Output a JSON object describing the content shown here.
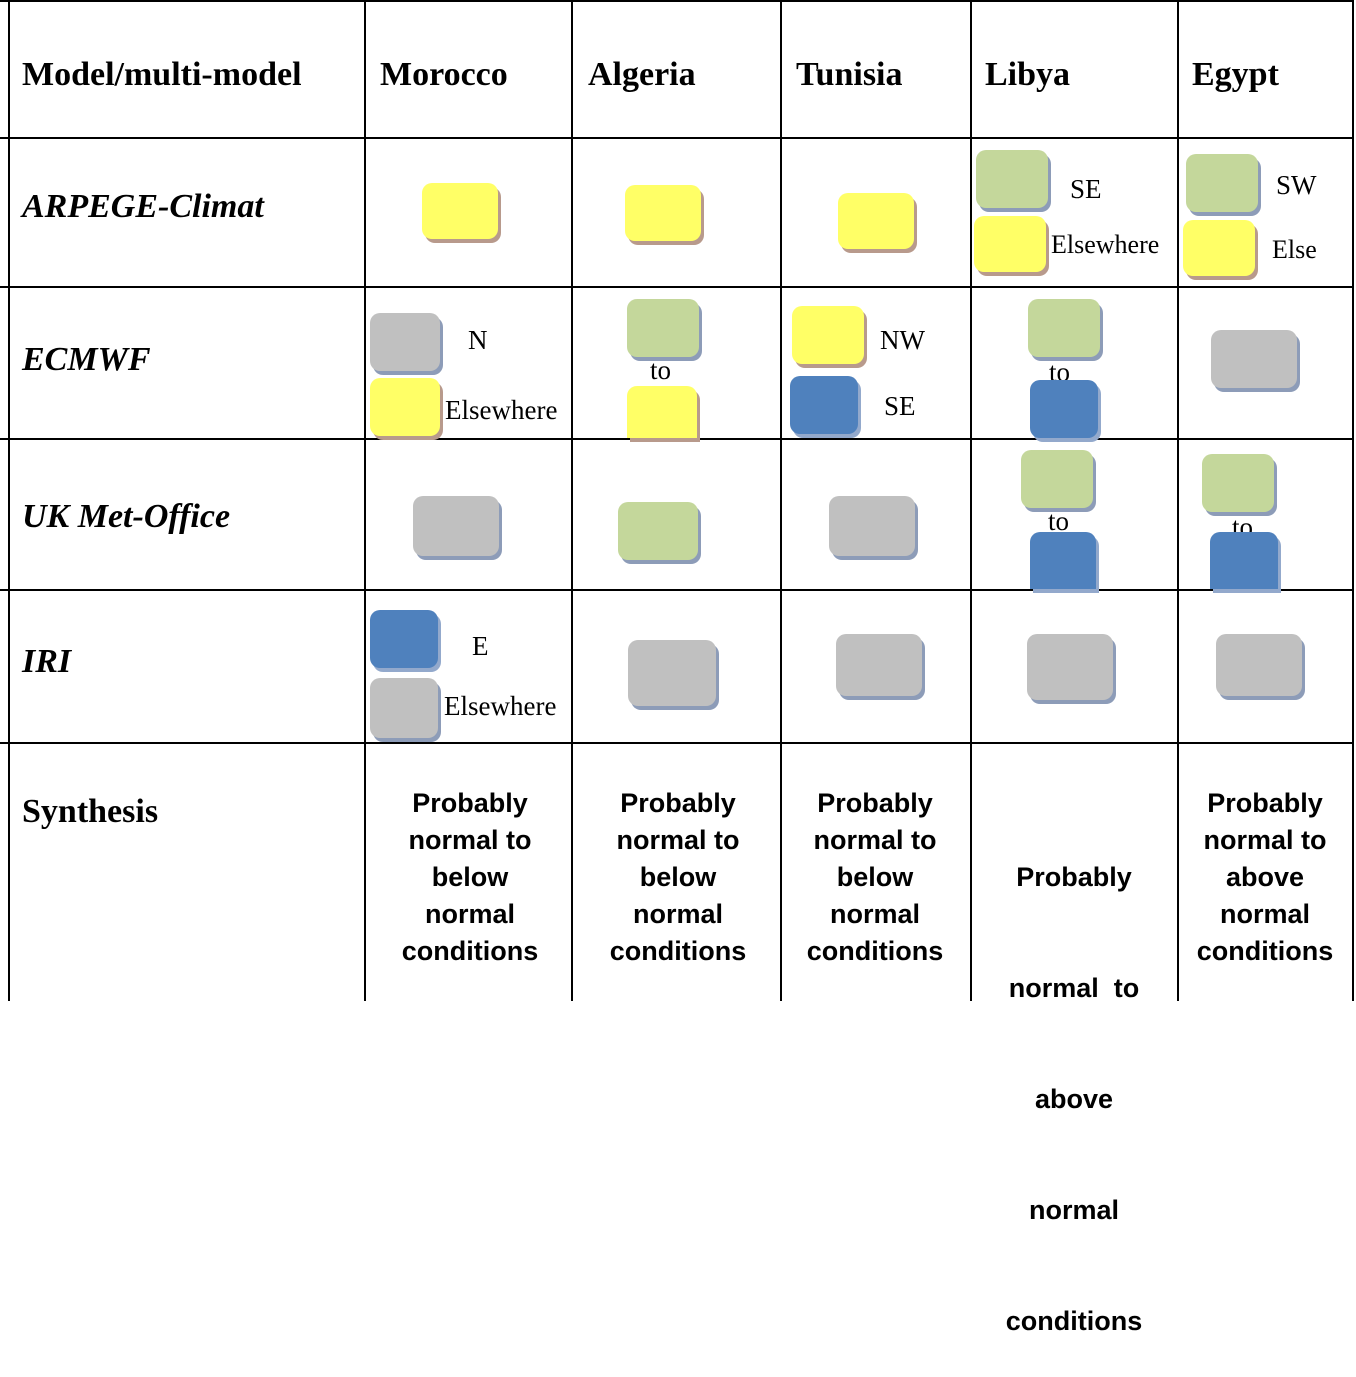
{
  "headers": {
    "model": "Model/multi-model",
    "morocco": "Morocco",
    "algeria": "Algeria",
    "tunisia": "Tunisia",
    "libya": "Libya",
    "egypt": "Egypt"
  },
  "legend_colors": {
    "yellow": "#ffff66",
    "green": "#c4d79b",
    "gray": "#c0c0c0",
    "blue": "#4f81bd"
  },
  "rows": {
    "arpege": {
      "label": "ARPEGE-Climat",
      "morocco": {
        "color": "yellow"
      },
      "algeria": {
        "color": "yellow"
      },
      "tunisia": {
        "color": "yellow"
      },
      "libya": {
        "color_1": "green",
        "label_1": "SE",
        "color_2": "yellow",
        "label_2": "Elsewhere"
      },
      "egypt": {
        "color_1": "green",
        "label_1": "SW",
        "color_2": "yellow",
        "label_2": "Else"
      }
    },
    "ecmwf": {
      "label": "ECMWF",
      "morocco": {
        "color_1": "gray",
        "label_1": "N",
        "color_2": "yellow",
        "label_2": "Elsewhere"
      },
      "algeria": {
        "color_1": "green",
        "connector": "to",
        "color_2": "yellow"
      },
      "tunisia": {
        "color_1": "yellow",
        "label_1": "NW",
        "color_2": "blue",
        "label_2": "SE"
      },
      "libya": {
        "color_1": "green",
        "connector": "to",
        "color_2": "blue"
      },
      "egypt": {
        "color": "gray"
      }
    },
    "ukmo": {
      "label": "UK Met-Office",
      "morocco": {
        "color": "gray"
      },
      "algeria": {
        "color": "green"
      },
      "tunisia": {
        "color": "gray"
      },
      "libya": {
        "color_1": "green",
        "connector": "to",
        "color_2": "blue"
      },
      "egypt": {
        "color_1": "green",
        "connector": "to",
        "color_2": "blue"
      }
    },
    "iri": {
      "label": "IRI",
      "morocco": {
        "color_1": "blue",
        "label_1": "E",
        "color_2": "gray",
        "label_2": "Elsewhere"
      },
      "algeria": {
        "color": "gray"
      },
      "tunisia": {
        "color": "gray"
      },
      "libya": {
        "color": "gray"
      },
      "egypt": {
        "color": "gray"
      }
    }
  },
  "synthesis": {
    "label": "Synthesis",
    "morocco": [
      "Probably",
      "normal to",
      "below",
      "normal",
      "conditions"
    ],
    "algeria": [
      "Probably",
      "normal to",
      "below",
      "normal",
      "conditions"
    ],
    "tunisia": [
      "Probably",
      "normal to",
      "below",
      "normal",
      "conditions"
    ],
    "libya": [
      "Probably",
      "normal  to",
      "above",
      "normal",
      "conditions"
    ],
    "egypt": [
      "Probably",
      "normal to",
      "above",
      "normal",
      "conditions"
    ]
  }
}
